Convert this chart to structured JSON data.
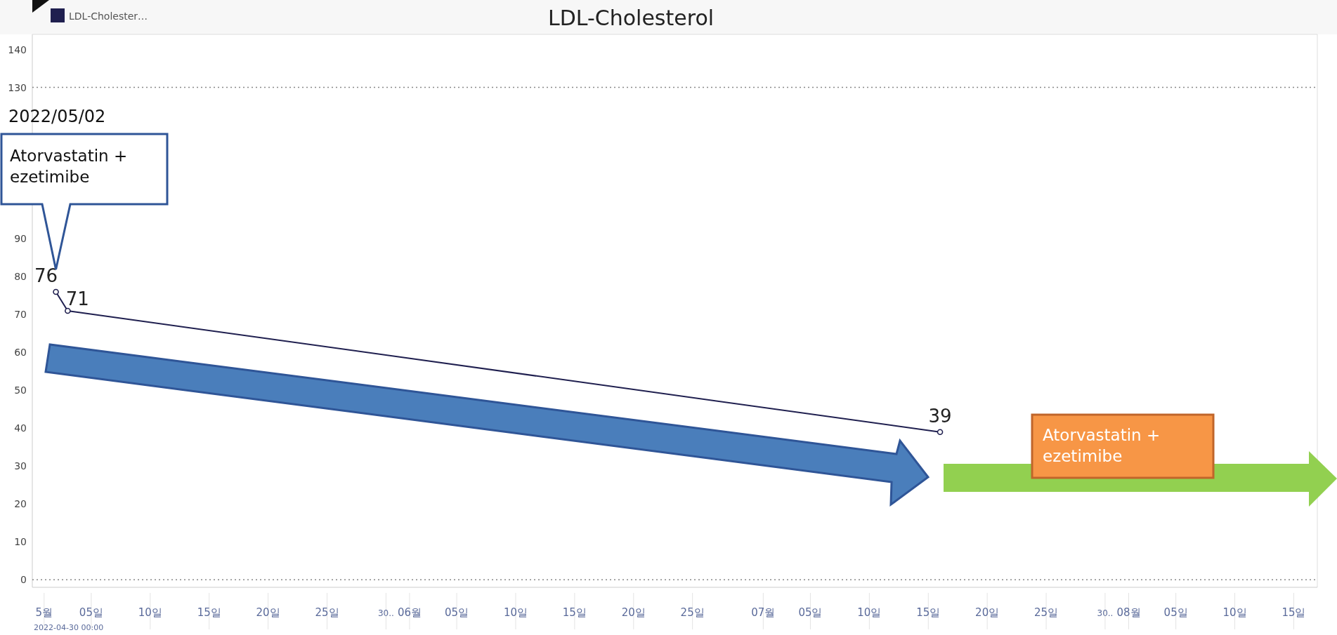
{
  "chart_data": {
    "type": "line",
    "title": "LDL-Cholesterol",
    "x": [
      "2022-05-02",
      "2022-05-03",
      "2022-07-16"
    ],
    "series": [
      {
        "name": "LDL-Cholester…",
        "color": "#1f1f4f",
        "values": [
          76,
          71,
          39
        ]
      }
    ],
    "xlim": [
      "2022-04-30",
      "2022-08-17"
    ],
    "xticks": [
      {
        "value": "2022-05-01",
        "label": "5월"
      },
      {
        "value": "2022-05-05",
        "label": "05일"
      },
      {
        "value": "2022-05-10",
        "label": "10일"
      },
      {
        "value": "2022-05-15",
        "label": "15일"
      },
      {
        "value": "2022-05-20",
        "label": "20일"
      },
      {
        "value": "2022-05-25",
        "label": "25일"
      },
      {
        "value": "2022-05-30",
        "label": "30.."
      },
      {
        "value": "2022-06-01",
        "label": "06월"
      },
      {
        "value": "2022-06-05",
        "label": "05일"
      },
      {
        "value": "2022-06-10",
        "label": "10일"
      },
      {
        "value": "2022-06-15",
        "label": "15일"
      },
      {
        "value": "2022-06-20",
        "label": "20일"
      },
      {
        "value": "2022-06-25",
        "label": "25일"
      },
      {
        "value": "2022-07-01",
        "label": "07월"
      },
      {
        "value": "2022-07-05",
        "label": "05일"
      },
      {
        "value": "2022-07-10",
        "label": "10일"
      },
      {
        "value": "2022-07-15",
        "label": "15일"
      },
      {
        "value": "2022-07-20",
        "label": "20일"
      },
      {
        "value": "2022-07-25",
        "label": "25일"
      },
      {
        "value": "2022-07-30",
        "label": "30.."
      },
      {
        "value": "2022-08-01",
        "label": "08월"
      },
      {
        "value": "2022-08-05",
        "label": "05일"
      },
      {
        "value": "2022-08-10",
        "label": "10일"
      },
      {
        "value": "2022-08-15",
        "label": "15일"
      }
    ],
    "ylim": [
      -2,
      144
    ],
    "yticks": [
      0,
      10,
      20,
      30,
      40,
      50,
      60,
      70,
      80,
      90,
      130,
      140
    ],
    "ref_lines": [
      {
        "axis": "y",
        "value": 0,
        "line_style": "dotted",
        "color": "#888888"
      },
      {
        "axis": "y",
        "value": 130,
        "line_style": "dotted",
        "color": "#888888"
      }
    ],
    "data_labels": true,
    "marker": "circle",
    "legend": "top left",
    "grid": false,
    "annotations": [
      "Atorvastatin + ezetimibe",
      "2022/05/02",
      "Atorvastatin + ezetimibe",
      "2022-04-30 00:00"
    ]
  }
}
